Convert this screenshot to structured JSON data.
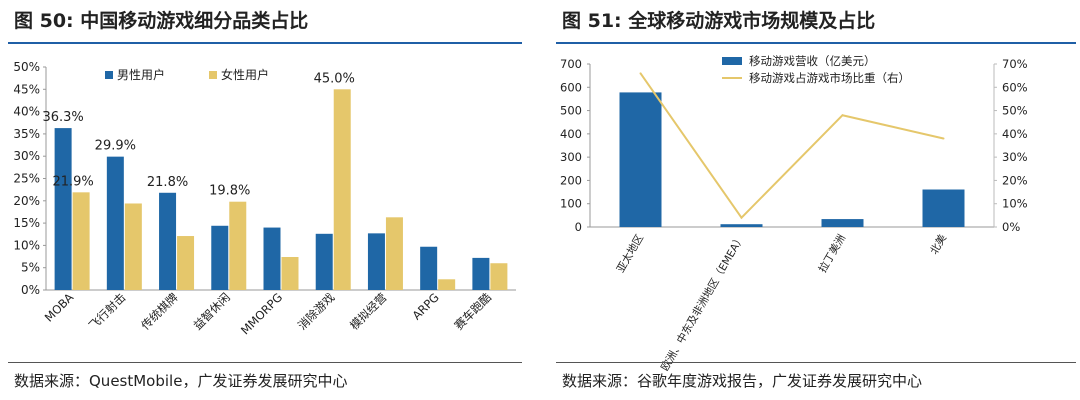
{
  "figures": [
    {
      "title": "图 50:  中国移动游戏细分品类占比",
      "source": "数据来源：QuestMobile，广发证券发展研究中心"
    },
    {
      "title": "图 51:  全球移动游戏市场规模及占比",
      "source": "数据来源：谷歌年度游戏报告，广发证券发展研究中心"
    }
  ],
  "colors": {
    "blue": "#1f67a6",
    "gold": "#e5c76b",
    "rule": "#1f5fa6"
  },
  "chart_data": [
    {
      "type": "bar",
      "categories": [
        "MOBA",
        "飞行射击",
        "传统棋牌",
        "益智休闲",
        "MMORPG",
        "消除游戏",
        "模拟经营",
        "ARPG",
        "赛车跑酷"
      ],
      "series": [
        {
          "name": "男性用户",
          "values": [
            36.3,
            29.9,
            21.8,
            14.4,
            14.0,
            12.6,
            12.7,
            9.7,
            7.2
          ]
        },
        {
          "name": "女性用户",
          "values": [
            21.9,
            19.4,
            12.1,
            19.8,
            7.4,
            45.0,
            16.3,
            2.4,
            6.0
          ]
        }
      ],
      "data_labels": {
        "series0": [
          "36.3%",
          "29.9%",
          "21.8%",
          null,
          null,
          null,
          null,
          null,
          null
        ],
        "series1": [
          "21.9%",
          null,
          null,
          "19.8%",
          null,
          "45.0%",
          null,
          null,
          null
        ]
      },
      "ylim": [
        0,
        50
      ],
      "yticks": [
        "0%",
        "5%",
        "10%",
        "15%",
        "20%",
        "25%",
        "30%",
        "35%",
        "40%",
        "45%",
        "50%"
      ],
      "legend": "top-left",
      "grid": false
    },
    {
      "type": "bar+line",
      "categories": [
        "亚太地区",
        "欧洲、中东及非洲地区（EMEA）",
        "拉丁美洲",
        "北美"
      ],
      "bar_series": {
        "name": "移动游戏营收（亿美元）",
        "values": [
          578,
          12,
          34,
          161
        ],
        "axis": "left"
      },
      "line_series": {
        "name": "移动游戏占游戏市场比重（右）",
        "values": [
          66,
          4,
          48,
          38
        ],
        "axis": "right"
      },
      "ylim_left": [
        0,
        700
      ],
      "yticks_left": [
        "0",
        "100",
        "200",
        "300",
        "400",
        "500",
        "600",
        "700"
      ],
      "ylim_right": [
        0,
        70
      ],
      "yticks_right": [
        "0%",
        "10%",
        "20%",
        "30%",
        "40%",
        "50%",
        "60%",
        "70%"
      ],
      "legend": "top-center",
      "grid": false
    }
  ]
}
